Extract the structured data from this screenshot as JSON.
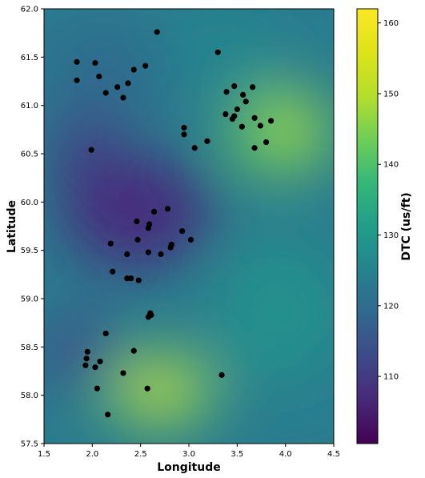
{
  "chart_data": {
    "type": "heatmap",
    "subtype": "interpolated surface with scatter points",
    "xlabel": "Longitude",
    "ylabel": "Latitude",
    "xlim": [
      1.5,
      4.5
    ],
    "ylim": [
      57.5,
      62.0
    ],
    "x_ticks": [
      "1.5",
      "2.0",
      "2.5",
      "3.0",
      "3.5",
      "4.0",
      "4.5"
    ],
    "y_ticks": [
      "57.5",
      "58.0",
      "58.5",
      "59.0",
      "59.5",
      "60.0",
      "60.5",
      "61.0",
      "61.5",
      "62.0"
    ],
    "colorbar": {
      "label": "DTC (us/ft)",
      "range": [
        100.5,
        162
      ],
      "ticks": [
        "110",
        "120",
        "130",
        "140",
        "150",
        "160"
      ],
      "colormap": "viridis"
    },
    "marker_color": "#000000",
    "points": [
      {
        "x": 1.84,
        "y": 61.45
      },
      {
        "x": 2.03,
        "y": 61.44
      },
      {
        "x": 1.84,
        "y": 61.26
      },
      {
        "x": 2.07,
        "y": 61.3
      },
      {
        "x": 2.14,
        "y": 61.13
      },
      {
        "x": 2.26,
        "y": 61.19
      },
      {
        "x": 2.32,
        "y": 61.08
      },
      {
        "x": 2.37,
        "y": 61.23
      },
      {
        "x": 2.43,
        "y": 61.37
      },
      {
        "x": 2.55,
        "y": 61.41
      },
      {
        "x": 2.67,
        "y": 61.76
      },
      {
        "x": 1.99,
        "y": 60.54
      },
      {
        "x": 3.3,
        "y": 61.55
      },
      {
        "x": 3.47,
        "y": 61.2
      },
      {
        "x": 3.39,
        "y": 61.14
      },
      {
        "x": 3.56,
        "y": 61.11
      },
      {
        "x": 3.66,
        "y": 61.19
      },
      {
        "x": 3.59,
        "y": 61.04
      },
      {
        "x": 3.5,
        "y": 60.96
      },
      {
        "x": 3.38,
        "y": 60.91
      },
      {
        "x": 3.47,
        "y": 60.89
      },
      {
        "x": 3.45,
        "y": 60.86
      },
      {
        "x": 3.68,
        "y": 60.87
      },
      {
        "x": 3.55,
        "y": 60.78
      },
      {
        "x": 3.74,
        "y": 60.79
      },
      {
        "x": 3.85,
        "y": 60.84
      },
      {
        "x": 3.8,
        "y": 60.62
      },
      {
        "x": 3.68,
        "y": 60.56
      },
      {
        "x": 2.95,
        "y": 60.77
      },
      {
        "x": 2.95,
        "y": 60.7
      },
      {
        "x": 3.19,
        "y": 60.63
      },
      {
        "x": 3.06,
        "y": 60.56
      },
      {
        "x": 2.78,
        "y": 59.93
      },
      {
        "x": 2.64,
        "y": 59.9
      },
      {
        "x": 2.46,
        "y": 59.8
      },
      {
        "x": 2.59,
        "y": 59.77
      },
      {
        "x": 2.58,
        "y": 59.73
      },
      {
        "x": 2.93,
        "y": 59.7
      },
      {
        "x": 3.02,
        "y": 59.61
      },
      {
        "x": 2.47,
        "y": 59.61
      },
      {
        "x": 2.19,
        "y": 59.57
      },
      {
        "x": 2.82,
        "y": 59.56
      },
      {
        "x": 2.81,
        "y": 59.53
      },
      {
        "x": 2.58,
        "y": 59.48
      },
      {
        "x": 2.36,
        "y": 59.46
      },
      {
        "x": 2.71,
        "y": 59.46
      },
      {
        "x": 2.21,
        "y": 59.28
      },
      {
        "x": 2.36,
        "y": 59.21
      },
      {
        "x": 2.4,
        "y": 59.21
      },
      {
        "x": 2.48,
        "y": 59.19
      },
      {
        "x": 2.6,
        "y": 58.85
      },
      {
        "x": 2.61,
        "y": 58.83
      },
      {
        "x": 2.58,
        "y": 58.81
      },
      {
        "x": 2.14,
        "y": 58.64
      },
      {
        "x": 1.95,
        "y": 58.45
      },
      {
        "x": 2.43,
        "y": 58.46
      },
      {
        "x": 1.94,
        "y": 58.38
      },
      {
        "x": 2.08,
        "y": 58.35
      },
      {
        "x": 1.93,
        "y": 58.31
      },
      {
        "x": 2.03,
        "y": 58.29
      },
      {
        "x": 2.32,
        "y": 58.23
      },
      {
        "x": 3.34,
        "y": 58.21
      },
      {
        "x": 2.05,
        "y": 58.07
      },
      {
        "x": 2.57,
        "y": 58.07
      },
      {
        "x": 2.16,
        "y": 57.8
      }
    ]
  }
}
